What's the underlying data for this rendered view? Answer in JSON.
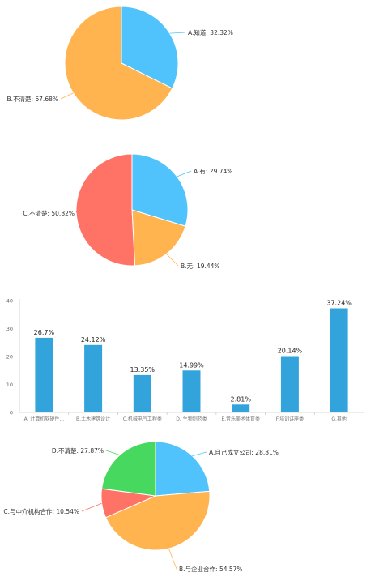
{
  "chart_data": [
    {
      "type": "pie",
      "labels": [
        "A.知道",
        "B.不清楚"
      ],
      "values": [
        32.32,
        67.68
      ],
      "display": [
        "A.知道: 32.32%",
        "B.不清楚: 67.68%"
      ],
      "colors": [
        "#51c3fc",
        "#ffb44f"
      ],
      "title": ""
    },
    {
      "type": "pie",
      "labels": [
        "A.有",
        "B.无",
        "C.不清楚"
      ],
      "values": [
        29.74,
        19.44,
        50.82
      ],
      "display": [
        "A.有: 29.74%",
        "B.无: 19.44%",
        "C.不清楚: 50.82%"
      ],
      "colors": [
        "#51c3fc",
        "#ffb44f",
        "#ff7266"
      ],
      "title": ""
    },
    {
      "type": "bar",
      "categories": [
        "A. 计算机软硬件...",
        "B.土木建筑设计",
        "C.机械电气工程类",
        "D. 生物制药类",
        "E.音乐美术体育类",
        "F.培训讲座类",
        "G.其他"
      ],
      "values": [
        26.7,
        24.12,
        13.35,
        14.99,
        2.81,
        20.14,
        37.24
      ],
      "value_labels": [
        "26.7%",
        "24.12%",
        "13.35%",
        "14.99%",
        "2.81%",
        "20.14%",
        "37.24%"
      ],
      "yticks": [
        "0",
        "10",
        "20",
        "30",
        "40"
      ],
      "ylim": [
        0,
        40
      ],
      "color": "#33a3dc",
      "title": "",
      "xlabel": "",
      "ylabel": ""
    },
    {
      "type": "pie",
      "labels": [
        "A.自己成立公司",
        "B.与企业合作",
        "C.与中介机构合作",
        "D.不清楚"
      ],
      "values": [
        28.81,
        54.57,
        10.54,
        27.87
      ],
      "display": [
        "A.自己成立公司: 28.81%",
        "B.与企业合作: 54.57%",
        "C.与中介机构合作: 10.54%",
        "D.不清楚: 27.87%"
      ],
      "colors": [
        "#51c3fc",
        "#ffb44f",
        "#ff7266",
        "#47d95f"
      ],
      "title": ""
    }
  ]
}
